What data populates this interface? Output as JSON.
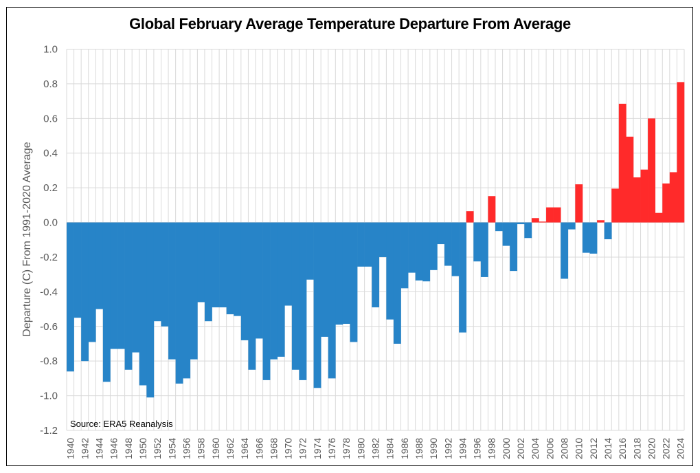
{
  "chart_data": {
    "type": "bar",
    "title": "Global February Average Temperature Departure From Average",
    "xlabel": "",
    "ylabel": "Departure (C) From 1991-2020 Average",
    "ylim": [
      -1.2,
      1.0
    ],
    "yticks": [
      "1.0",
      "0.8",
      "0.6",
      "0.4",
      "0.2",
      "0.0",
      "-0.2",
      "-0.4",
      "-0.6",
      "-0.8",
      "-1.0",
      "-1.2"
    ],
    "ytick_values": [
      1.0,
      0.8,
      0.6,
      0.4,
      0.2,
      0.0,
      -0.2,
      -0.4,
      -0.6,
      -0.8,
      -1.0,
      -1.2
    ],
    "grid": true,
    "annotation": "Source: ERA5 Reanalysis",
    "colors": {
      "positive": "#FF2A2A",
      "negative": "#2784C8"
    },
    "xtick_labels": [
      "1940",
      "1942",
      "1944",
      "1946",
      "1948",
      "1950",
      "1952",
      "1954",
      "1956",
      "1958",
      "1960",
      "1962",
      "1964",
      "1966",
      "1968",
      "1970",
      "1972",
      "1974",
      "1976",
      "1978",
      "1980",
      "1982",
      "1984",
      "1986",
      "1988",
      "1990",
      "1992",
      "1994",
      "1996",
      "1998",
      "2000",
      "2002",
      "2004",
      "2006",
      "2008",
      "2010",
      "2012",
      "2014",
      "2016",
      "2018",
      "2020",
      "2022",
      "2024"
    ],
    "categories": [
      1940,
      1941,
      1942,
      1943,
      1944,
      1945,
      1946,
      1947,
      1948,
      1949,
      1950,
      1951,
      1952,
      1953,
      1954,
      1955,
      1956,
      1957,
      1958,
      1959,
      1960,
      1961,
      1962,
      1963,
      1964,
      1965,
      1966,
      1967,
      1968,
      1969,
      1970,
      1971,
      1972,
      1973,
      1974,
      1975,
      1976,
      1977,
      1978,
      1979,
      1980,
      1981,
      1982,
      1983,
      1984,
      1985,
      1986,
      1987,
      1988,
      1989,
      1990,
      1991,
      1992,
      1993,
      1994,
      1995,
      1996,
      1997,
      1998,
      1999,
      2000,
      2001,
      2002,
      2003,
      2004,
      2005,
      2006,
      2007,
      2008,
      2009,
      2010,
      2011,
      2012,
      2013,
      2014,
      2015,
      2016,
      2017,
      2018,
      2019,
      2020,
      2021,
      2022,
      2023,
      2024
    ],
    "values": [
      -0.86,
      -0.55,
      -0.8,
      -0.69,
      -0.5,
      -0.92,
      -0.73,
      -0.73,
      -0.85,
      -0.75,
      -0.94,
      -1.01,
      -0.57,
      -0.6,
      -0.79,
      -0.93,
      -0.9,
      -0.79,
      -0.46,
      -0.57,
      -0.49,
      -0.49,
      -0.53,
      -0.54,
      -0.68,
      -0.85,
      -0.67,
      -0.91,
      -0.79,
      -0.775,
      -0.48,
      -0.85,
      -0.91,
      -0.33,
      -0.955,
      -0.66,
      -0.9,
      -0.59,
      -0.585,
      -0.69,
      -0.255,
      -0.255,
      -0.49,
      -0.2,
      -0.56,
      -0.7,
      -0.38,
      -0.29,
      -0.335,
      -0.34,
      -0.275,
      -0.125,
      -0.25,
      -0.31,
      -0.635,
      0.065,
      -0.225,
      -0.315,
      0.152,
      -0.05,
      -0.135,
      -0.28,
      -0.01,
      -0.09,
      0.025,
      0.005,
      0.087,
      0.087,
      -0.325,
      -0.04,
      0.22,
      -0.175,
      -0.18,
      0.013,
      -0.097,
      0.195,
      0.685,
      0.495,
      0.26,
      0.305,
      0.6,
      0.055,
      0.225,
      0.29,
      0.81
    ]
  }
}
